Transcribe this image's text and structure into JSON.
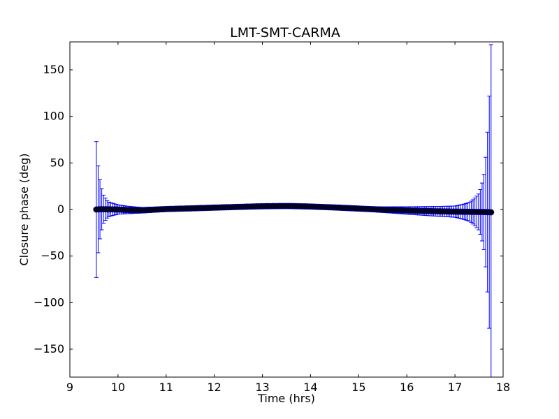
{
  "chart_data": {
    "type": "scatter",
    "title": "LMT-SMT-CARMA",
    "xlabel": "Time (hrs)",
    "ylabel": "Closure phase (deg)",
    "xlim": [
      9,
      18
    ],
    "ylim": [
      -180,
      180
    ],
    "xticks": [
      9,
      10,
      11,
      12,
      13,
      14,
      15,
      16,
      17,
      18
    ],
    "xtick_labels": [
      "9",
      "10",
      "11",
      "12",
      "13",
      "14",
      "15",
      "16",
      "17",
      "18"
    ],
    "yticks": [
      -150,
      -100,
      -50,
      0,
      50,
      100,
      150
    ],
    "ytick_labels": [
      "−150",
      "−100",
      "−50",
      "0",
      "50",
      "100",
      "150"
    ],
    "grid": false,
    "colors": {
      "errorbar": "#0000ff",
      "marker": "#000000",
      "marker_edge": "#00007f"
    },
    "series": [
      {
        "x": [
          9.55,
          9.6,
          9.65,
          9.7,
          9.8,
          10.0,
          10.2,
          10.5,
          11.0,
          11.5,
          12.0,
          12.5,
          13.0,
          13.5,
          14.0,
          14.5,
          15.0,
          15.5,
          16.0,
          16.5,
          17.0,
          17.3,
          17.5,
          17.6,
          17.7,
          17.75
        ],
        "y": [
          0,
          0.2,
          0.3,
          0.3,
          0.2,
          0,
          -0.5,
          -0.8,
          0.5,
          1.2,
          2.0,
          2.8,
          3.5,
          3.8,
          3.2,
          2.2,
          1.0,
          -0.2,
          -1.0,
          -1.8,
          -2.3,
          -2.5,
          -2.6,
          -2.7,
          -2.8,
          -3.0
        ],
        "err": [
          73,
          40,
          25,
          15,
          8,
          5,
          4,
          3,
          2.5,
          2,
          2,
          2,
          2,
          2,
          2,
          2,
          2.5,
          3,
          4,
          5,
          6,
          10,
          20,
          40,
          110,
          180
        ]
      }
    ]
  }
}
